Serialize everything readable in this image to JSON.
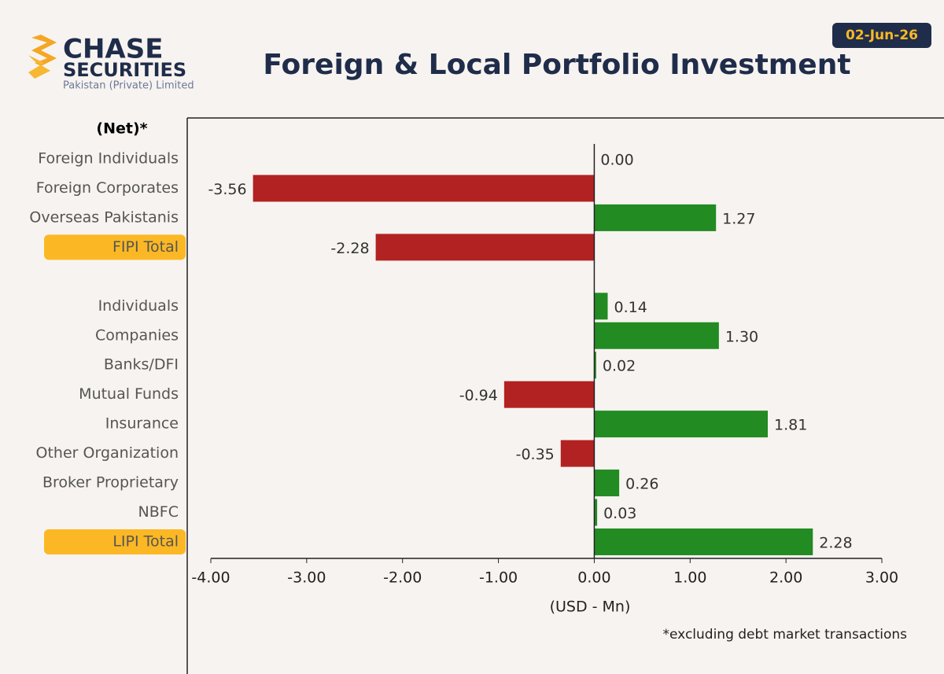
{
  "header": {
    "logo_top": "CHASE",
    "logo_bottom": "SECURITIES",
    "logo_sub": "Pakistan (Private) Limited",
    "date": "02-Jun-26"
  },
  "chart_data": {
    "type": "hbar",
    "title": "Foreign & Local Portfolio Investment",
    "category_header": "(Net)*",
    "categories": [
      "Foreign Individuals",
      "Foreign Corporates",
      "Overseas Pakistanis",
      "FIPI Total",
      null,
      "Individuals",
      "Companies",
      "Banks/DFI",
      "Mutual Funds",
      "Insurance",
      "Other Organization",
      "Broker Proprietary",
      "NBFC",
      "LIPI Total"
    ],
    "values": [
      0,
      -3.56,
      1.27,
      -2.28,
      null,
      0.14,
      1.3,
      0.02,
      -0.94,
      1.81,
      -0.35,
      0.26,
      0.03,
      2.28
    ],
    "value_labels": [
      "0.00",
      "-3.56",
      "1.27",
      "-2.28",
      null,
      "0.14",
      "1.30",
      "0.02",
      "-0.94",
      "1.81",
      "-0.35",
      "0.26",
      "0.03",
      "2.28"
    ],
    "positive_color": "#228b22",
    "negative_color": "#b22222",
    "highlighted": [
      3,
      13
    ],
    "highlight_color": "#fbb824",
    "xlim": [
      -4,
      3
    ],
    "xticks": [
      {
        "value": -4,
        "label": "-4.00"
      },
      {
        "value": -3,
        "label": "-3.00"
      },
      {
        "value": -2,
        "label": "-2.00"
      },
      {
        "value": -1,
        "label": "-1.00"
      },
      {
        "value": 0,
        "label": "0.00"
      },
      {
        "value": 1,
        "label": "1.00"
      },
      {
        "value": 2,
        "label": "2.00"
      },
      {
        "value": 3,
        "label": "3.00"
      }
    ],
    "xlabel": "(USD - Mn)",
    "footnote": "*excluding debt market transactions"
  }
}
